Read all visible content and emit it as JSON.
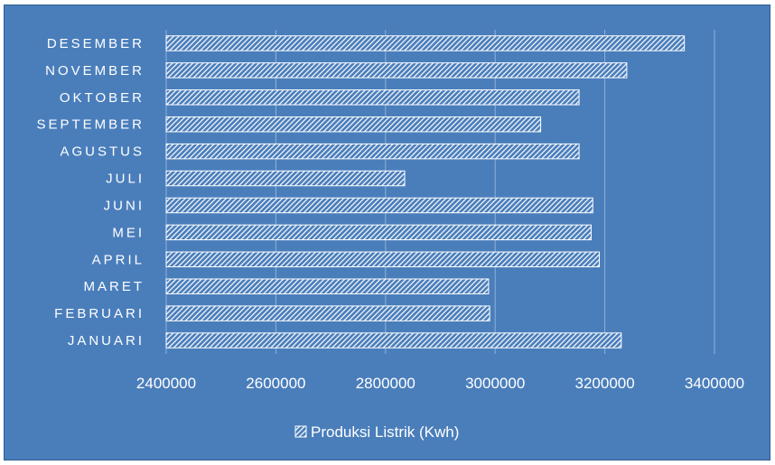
{
  "colors": {
    "background": "#4a7ebb",
    "bar_stroke": "#ffffff",
    "bar_hatch": "#ffffff",
    "gridline": "#8fb0db",
    "text": "#ffffff"
  },
  "chart_data": {
    "type": "bar",
    "orientation": "horizontal",
    "title": "",
    "xlabel": "",
    "ylabel": "",
    "categories": [
      "JANUARI",
      "FEBRUARI",
      "MARET",
      "APRIL",
      "MEI",
      "JUNI",
      "JULI",
      "AGUSTUS",
      "SEPTEMBER",
      "OKTOBER",
      "NOVEMBER",
      "DESEMBER"
    ],
    "series": [
      {
        "name": "Produksi Listrik (Kwh)",
        "values": [
          3230000,
          2990000,
          2988000,
          3190000,
          3175000,
          3178000,
          2835000,
          3153000,
          3083000,
          3153000,
          3240000,
          3345000
        ],
        "pattern": "diagonal-hatch"
      }
    ],
    "xlim": [
      2400000,
      3400000
    ],
    "xticks": [
      "2400000",
      "2600000",
      "2800000",
      "3000000",
      "3200000",
      "3400000"
    ],
    "grid": true,
    "legend_position": "bottom"
  }
}
